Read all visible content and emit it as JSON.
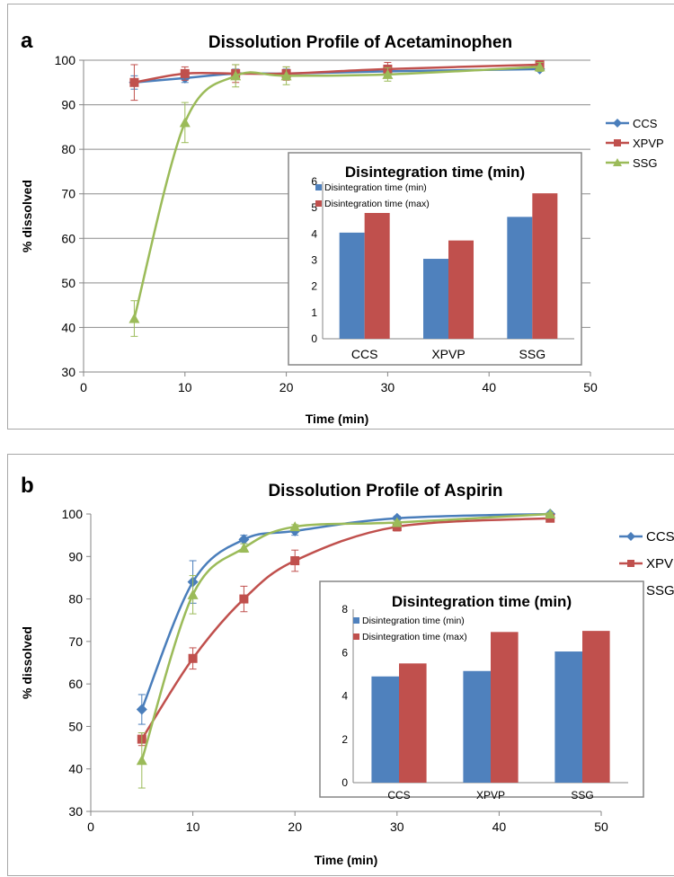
{
  "chart_data": [
    {
      "panel_label": "a",
      "type": "line",
      "title": "Dissolution Profile of Acetaminophen",
      "xlabel": "Time (min)",
      "ylabel": "% dissolved",
      "xlim": [
        0,
        50
      ],
      "ylim": [
        30,
        100
      ],
      "xticks": [
        0,
        10,
        20,
        30,
        40,
        50
      ],
      "yticks": [
        30,
        40,
        50,
        60,
        70,
        80,
        90,
        100
      ],
      "grid": "horizontal",
      "legend_position": "right",
      "x": [
        5,
        10,
        15,
        20,
        30,
        45
      ],
      "series": [
        {
          "name": "CCS",
          "color": "#4a7ebb",
          "marker": "diamond",
          "values": [
            95,
            96,
            97,
            97,
            97.5,
            98
          ],
          "errors": [
            1.5,
            1,
            1,
            1,
            1,
            0.5
          ]
        },
        {
          "name": "XPVP",
          "color": "#c0504d",
          "marker": "square",
          "values": [
            95,
            97,
            97,
            97,
            98,
            99
          ],
          "errors": [
            4,
            1.5,
            2,
            1.5,
            1.5,
            0.5
          ]
        },
        {
          "name": "SSG",
          "color": "#9bbb59",
          "marker": "triangle",
          "values": [
            42,
            86,
            96.5,
            96.5,
            96.8,
            98.5
          ],
          "errors": [
            4,
            4.5,
            2.5,
            2,
            1.5,
            1
          ]
        }
      ],
      "inset": {
        "type": "bar",
        "title": "Disintegration time (min)",
        "categories": [
          "CCS",
          "XPVP",
          "SSG"
        ],
        "ylim": [
          0,
          6
        ],
        "yticks": [
          0,
          1,
          2,
          3,
          4,
          5,
          6
        ],
        "legend_position": "top-left",
        "series": [
          {
            "name": "Disintegration time (min)",
            "color": "#4f81bd",
            "values": [
              4.05,
              3.05,
              4.65
            ]
          },
          {
            "name": "Disintegration time (max)",
            "color": "#c0504d",
            "values": [
              4.8,
              3.75,
              5.55
            ]
          }
        ]
      }
    },
    {
      "panel_label": "b",
      "type": "line",
      "title": "Dissolution Profile of Aspirin",
      "xlabel": "Time (min)",
      "ylabel": "% dissolved",
      "xlim": [
        0,
        50
      ],
      "ylim": [
        30,
        100
      ],
      "xticks": [
        0,
        10,
        20,
        30,
        40,
        50
      ],
      "yticks": [
        30,
        40,
        50,
        60,
        70,
        80,
        90,
        100
      ],
      "grid": "none",
      "legend_position": "right",
      "x": [
        5,
        10,
        15,
        20,
        30,
        45
      ],
      "series": [
        {
          "name": "CCS",
          "color": "#4a7ebb",
          "marker": "diamond",
          "values": [
            54,
            84,
            94,
            96,
            99,
            100
          ],
          "errors": [
            3.5,
            5,
            1,
            1,
            0.5,
            0.3
          ]
        },
        {
          "name": "XPVP",
          "color": "#c0504d",
          "marker": "square",
          "values": [
            47,
            66,
            80,
            89,
            97,
            99
          ],
          "errors": [
            1.5,
            2.5,
            3,
            2.5,
            1,
            0.5
          ]
        },
        {
          "name": "SSG",
          "color": "#9bbb59",
          "marker": "triangle",
          "values": [
            42,
            81,
            92,
            97,
            98,
            100
          ],
          "errors": [
            6.5,
            4.5,
            1,
            0.5,
            0.5,
            0.3
          ]
        }
      ],
      "inset": {
        "type": "bar",
        "title": "Disintegration time (min)",
        "categories": [
          "CCS",
          "XPVP",
          "SSG"
        ],
        "ylim": [
          0,
          8
        ],
        "yticks": [
          0,
          2,
          4,
          6,
          8
        ],
        "legend_position": "top-left",
        "series": [
          {
            "name": "Disintegration time (min)",
            "color": "#4f81bd",
            "values": [
              4.9,
              5.15,
              6.05
            ]
          },
          {
            "name": "Disintegration time (max)",
            "color": "#c0504d",
            "values": [
              5.5,
              6.95,
              7.0
            ]
          }
        ]
      }
    }
  ]
}
